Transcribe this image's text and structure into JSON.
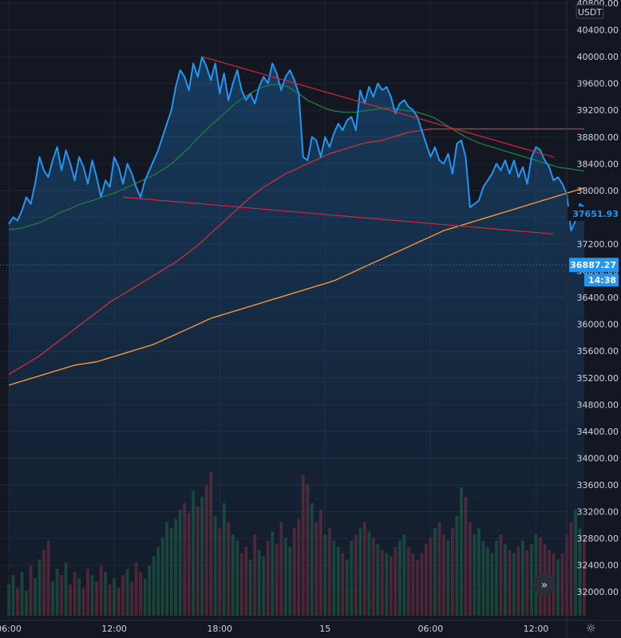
{
  "chart_data": {
    "type": "line",
    "currency": "USDT",
    "ylim": [
      31800,
      40800
    ],
    "y_ticks": [
      32000,
      32400,
      32800,
      33200,
      33600,
      34000,
      34400,
      34800,
      35200,
      35600,
      36000,
      36400,
      36800,
      37200,
      37600,
      38000,
      38400,
      38800,
      39200,
      39600,
      40000,
      40400,
      40800
    ],
    "y_tick_labels": [
      "32000.00",
      "32400.00",
      "32800.00",
      "33200.00",
      "33600.00",
      "34000.00",
      "34400.00",
      "34800.00",
      "35200.00",
      "35600.00",
      "36000.00",
      "36400.00",
      "36800.00",
      "37200.00",
      "37600.00",
      "38000.00",
      "38400.00",
      "38800.00",
      "39200.00",
      "39600.00",
      "40000.00",
      "40400.00",
      "40800.00"
    ],
    "xlim": [
      -2,
      127
    ],
    "x_ticks": [
      {
        "x": 0,
        "label": "06:00"
      },
      {
        "x": 24,
        "label": "12:00"
      },
      {
        "x": 48,
        "label": "18:00"
      },
      {
        "x": 72,
        "label": "15"
      },
      {
        "x": 96,
        "label": "06:00"
      },
      {
        "x": 120,
        "label": "12:00"
      }
    ],
    "grid": true,
    "legend": "none",
    "series": [
      {
        "role": "price",
        "color": "#2196f3",
        "values": [
          37500,
          37600,
          37550,
          37700,
          37900,
          37800,
          38100,
          38500,
          38300,
          38200,
          38450,
          38650,
          38300,
          38600,
          38400,
          38150,
          38500,
          38350,
          38100,
          38450,
          38200,
          37900,
          38150,
          38050,
          38500,
          38350,
          38100,
          38400,
          38250,
          38050,
          37900,
          38150,
          38300,
          38450,
          38600,
          38800,
          39000,
          39200,
          39550,
          39800,
          39700,
          39500,
          39900,
          39700,
          40000,
          39850,
          39650,
          39900,
          39450,
          39750,
          39350,
          39600,
          39800,
          39500,
          39350,
          39450,
          39300,
          39550,
          39700,
          39600,
          39900,
          39750,
          39500,
          39700,
          39800,
          39650,
          39450,
          38500,
          38450,
          38800,
          38750,
          38500,
          38800,
          38650,
          38850,
          39000,
          38900,
          39050,
          39100,
          38900,
          39500,
          39300,
          39550,
          39400,
          39600,
          39500,
          39550,
          39400,
          39150,
          39300,
          39350,
          39250,
          39200,
          39100,
          38900,
          38700,
          38500,
          38650,
          38450,
          38400,
          38550,
          38250,
          38700,
          38750,
          38500,
          37750,
          37800,
          37850,
          38050,
          38150,
          38250,
          38400,
          38300,
          38450,
          38250,
          38450,
          38200,
          38350,
          38100,
          38500,
          38650,
          38600,
          38450,
          38350,
          38150,
          38200,
          38100,
          37950,
          37400,
          37550,
          37800,
          37750
        ]
      },
      {
        "role": "ma-short",
        "color": "#1e7a3c",
        "values": [
          37420,
          37420,
          37430,
          37440,
          37460,
          37480,
          37500,
          37520,
          37550,
          37580,
          37610,
          37650,
          37680,
          37700,
          37730,
          37760,
          37790,
          37810,
          37830,
          37850,
          37870,
          37900,
          37920,
          37940,
          37960,
          37990,
          38020,
          38050,
          38080,
          38110,
          38140,
          38170,
          38200,
          38230,
          38270,
          38310,
          38350,
          38400,
          38460,
          38520,
          38580,
          38640,
          38710,
          38780,
          38850,
          38910,
          38970,
          39030,
          39090,
          39150,
          39210,
          39270,
          39320,
          39370,
          39410,
          39450,
          39490,
          39520,
          39550,
          39570,
          39580,
          39590,
          39580,
          39560,
          39530,
          39490,
          39450,
          39400,
          39350,
          39320,
          39290,
          39260,
          39230,
          39210,
          39190,
          39180,
          39170,
          39170,
          39170,
          39170,
          39180,
          39190,
          39200,
          39210,
          39220,
          39230,
          39230,
          39230,
          39220,
          39210,
          39200,
          39190,
          39180,
          39170,
          39150,
          39130,
          39110,
          39080,
          39040,
          39000,
          38960,
          38920,
          38880,
          38840,
          38800,
          38770,
          38740,
          38710,
          38690,
          38670,
          38650,
          38630,
          38610,
          38590,
          38570,
          38550,
          38530,
          38510,
          38490,
          38470,
          38450,
          38430,
          38410,
          38390,
          38370,
          38350,
          38340,
          38330,
          38320,
          38310,
          38300,
          38290
        ]
      },
      {
        "role": "ma-medium",
        "color": "#c2303f",
        "values": [
          35250,
          35290,
          35330,
          35370,
          35410,
          35450,
          35490,
          35530,
          35580,
          35630,
          35680,
          35730,
          35780,
          35830,
          35880,
          35930,
          35980,
          36030,
          36080,
          36130,
          36180,
          36230,
          36280,
          36330,
          36370,
          36410,
          36450,
          36490,
          36530,
          36570,
          36610,
          36650,
          36690,
          36730,
          36770,
          36810,
          36850,
          36890,
          36930,
          36980,
          37030,
          37080,
          37130,
          37180,
          37240,
          37300,
          37360,
          37420,
          37480,
          37540,
          37600,
          37660,
          37720,
          37780,
          37840,
          37900,
          37950,
          38000,
          38050,
          38090,
          38130,
          38170,
          38210,
          38250,
          38280,
          38310,
          38340,
          38370,
          38400,
          38430,
          38460,
          38490,
          38520,
          38550,
          38570,
          38590,
          38610,
          38630,
          38650,
          38670,
          38690,
          38710,
          38720,
          38730,
          38740,
          38750,
          38770,
          38790,
          38810,
          38830,
          38850,
          38870,
          38880,
          38890,
          38900,
          38910,
          38920,
          38920,
          38920,
          38920,
          38920,
          38920,
          38920,
          38920,
          38920,
          38920,
          38920,
          38920,
          38920,
          38920,
          38920,
          38920,
          38920,
          38920,
          38920,
          38920,
          38920,
          38920,
          38920,
          38920,
          38920,
          38920,
          38920,
          38920,
          38920,
          38920,
          38920,
          38920,
          38920,
          38920,
          38920,
          38920
        ]
      },
      {
        "role": "ma-long",
        "color": "#f59738",
        "values": [
          35090,
          35110,
          35130,
          35150,
          35170,
          35190,
          35210,
          35230,
          35250,
          35270,
          35290,
          35310,
          35330,
          35350,
          35370,
          35390,
          35400,
          35410,
          35420,
          35430,
          35440,
          35460,
          35480,
          35500,
          35520,
          35540,
          35560,
          35580,
          35600,
          35620,
          35640,
          35660,
          35680,
          35700,
          35730,
          35760,
          35790,
          35820,
          35850,
          35880,
          35910,
          35940,
          35970,
          36000,
          36030,
          36060,
          36090,
          36110,
          36130,
          36150,
          36170,
          36190,
          36210,
          36230,
          36250,
          36270,
          36290,
          36310,
          36330,
          36350,
          36370,
          36390,
          36410,
          36430,
          36450,
          36470,
          36490,
          36510,
          36530,
          36550,
          36570,
          36590,
          36610,
          36630,
          36650,
          36680,
          36710,
          36740,
          36770,
          36800,
          36830,
          36860,
          36890,
          36920,
          36950,
          36980,
          37010,
          37040,
          37070,
          37100,
          37130,
          37160,
          37190,
          37220,
          37250,
          37280,
          37310,
          37340,
          37370,
          37400,
          37420,
          37440,
          37460,
          37480,
          37500,
          37520,
          37540,
          37560,
          37580,
          37600,
          37620,
          37640,
          37660,
          37680,
          37700,
          37720,
          37740,
          37760,
          37780,
          37800,
          37820,
          37840,
          37860,
          37880,
          37900,
          37920,
          37940,
          37960,
          37980,
          38000,
          38020,
          38040
        ]
      }
    ],
    "volume": [
      100,
      130,
      90,
      140,
      80,
      160,
      120,
      180,
      210,
      240,
      110,
      150,
      130,
      170,
      100,
      140,
      120,
      90,
      150,
      130,
      110,
      160,
      140,
      100,
      120,
      90,
      130,
      150,
      110,
      170,
      140,
      120,
      160,
      190,
      220,
      250,
      300,
      280,
      310,
      340,
      360,
      330,
      400,
      350,
      380,
      420,
      460,
      320,
      280,
      360,
      300,
      260,
      240,
      200,
      220,
      180,
      260,
      210,
      190,
      240,
      270,
      230,
      300,
      250,
      220,
      280,
      310,
      450,
      420,
      360,
      300,
      340,
      260,
      280,
      240,
      220,
      200,
      180,
      240,
      260,
      280,
      300,
      270,
      250,
      230,
      210,
      200,
      190,
      220,
      240,
      260,
      220,
      200,
      180,
      200,
      230,
      250,
      280,
      300,
      260,
      240,
      280,
      320,
      410,
      380,
      300,
      260,
      280,
      240,
      220,
      200,
      240,
      260,
      230,
      210,
      200,
      220,
      240,
      210,
      230,
      260,
      250,
      230,
      210,
      200,
      180,
      200,
      260,
      300,
      340,
      280,
      260
    ],
    "volume_max": 470,
    "trendlines": [
      {
        "color": "#d5263a",
        "points": [
          [
            44,
            40000
          ],
          [
            124,
            38500
          ]
        ]
      },
      {
        "color": "#d5263a",
        "points": [
          [
            26,
            37900
          ],
          [
            124,
            37350
          ]
        ]
      }
    ],
    "last_price": 37651.93,
    "last_price_color": "#2196f3",
    "mark_price": 36887.27,
    "mark_time": "14:38"
  }
}
